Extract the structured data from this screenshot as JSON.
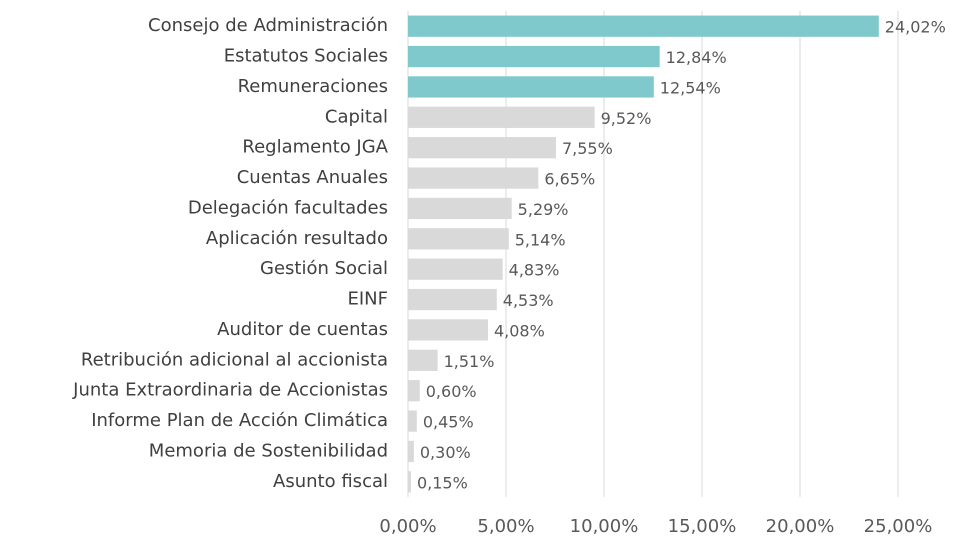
{
  "chart_data": {
    "type": "hbar",
    "categories": [
      "Consejo de Administración",
      "Estatutos Sociales",
      "Remuneraciones",
      "Capital",
      "Reglamento JGA",
      "Cuentas Anuales",
      "Delegación facultades",
      "Aplicación resultado",
      "Gestión Social",
      "EINF",
      "Auditor de cuentas",
      "Retribución adicional al accionista",
      "Junta Extraordinaria de Accionistas",
      "Informe Plan de Acción Climática",
      "Memoria de Sostenibilidad",
      "Asunto fiscal"
    ],
    "values": [
      24.02,
      12.84,
      12.54,
      9.52,
      7.55,
      6.65,
      5.29,
      5.14,
      4.83,
      4.53,
      4.08,
      1.51,
      0.6,
      0.45,
      0.3,
      0.15
    ],
    "value_labels": [
      "24,02%",
      "12,84%",
      "12,54%",
      "9,52%",
      "7,55%",
      "6,65%",
      "5,29%",
      "5,14%",
      "4,83%",
      "4,53%",
      "4,08%",
      "1,51%",
      "0,60%",
      "0,45%",
      "0,30%",
      "0,15%"
    ],
    "colors": [
      "#7fc9cc",
      "#7fc9cc",
      "#7fc9cc",
      "#d9d9d9",
      "#d9d9d9",
      "#d9d9d9",
      "#d9d9d9",
      "#d9d9d9",
      "#d9d9d9",
      "#d9d9d9",
      "#d9d9d9",
      "#d9d9d9",
      "#d9d9d9",
      "#d9d9d9",
      "#d9d9d9",
      "#d9d9d9"
    ],
    "xlim": [
      0,
      25
    ],
    "xticks": [
      {
        "value": 0,
        "label": "0,00%"
      },
      {
        "value": 5,
        "label": "5,00%"
      },
      {
        "value": 10,
        "label": "10,00%"
      },
      {
        "value": 15,
        "label": "15,00%"
      },
      {
        "value": 20,
        "label": "20,00%"
      },
      {
        "value": 25,
        "label": "25,00%"
      }
    ],
    "grid": true
  }
}
